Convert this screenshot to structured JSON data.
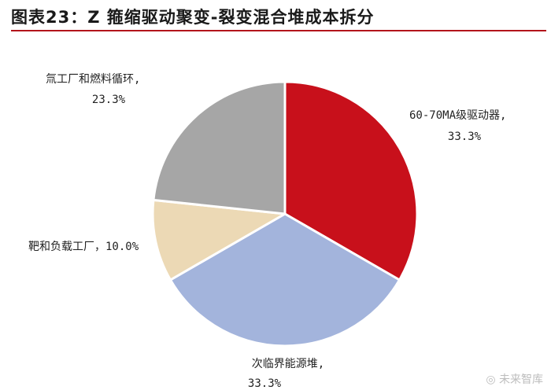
{
  "title": "图表23：Z 箍缩驱动聚变-裂变混合堆成本拆分",
  "watermark": "未来智库",
  "chart_data": {
    "type": "pie",
    "title": "图表23：Z 箍缩驱动聚变-裂变混合堆成本拆分",
    "start_angle_deg": 0,
    "direction": "clockwise",
    "slices": [
      {
        "name": "60-70MA级驱动器",
        "value": 33.3,
        "percent_label": "33.3%",
        "color": "#c8101b"
      },
      {
        "name": "次临界能源堆",
        "value": 33.3,
        "percent_label": "33.3%",
        "color": "#a3b4dc"
      },
      {
        "name": "靶和负载工厂",
        "value": 10.0,
        "percent_label": "10.0%",
        "color": "#ecd9b5"
      },
      {
        "name": "氚工厂和燃料循环",
        "value": 23.3,
        "percent_label": "23.3%",
        "color": "#a6a6a6"
      }
    ],
    "labels": [
      {
        "line1": "60-70MA级驱动器,",
        "line2": "33.3%"
      },
      {
        "line1": "次临界能源堆,",
        "line2": "33.3%"
      },
      {
        "line1": "靶和负载工厂，10.0%",
        "line2": ""
      },
      {
        "line1": "氚工厂和燃料循环,",
        "line2": "23.3%"
      }
    ]
  }
}
